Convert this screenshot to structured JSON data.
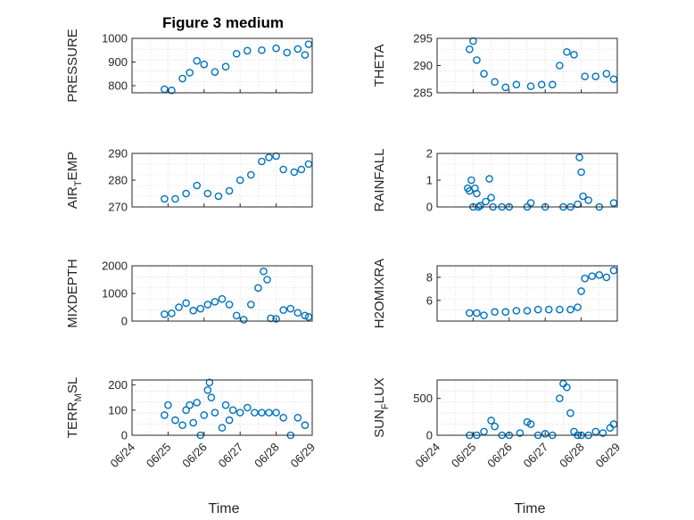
{
  "figure_title": "Figure 3 medium",
  "chart_data": [
    {
      "type": "scatter",
      "ylabel": "PRESSURE",
      "ylabel_sub": null,
      "xlim": [
        "06/24",
        "06/29"
      ],
      "ylim": [
        770,
        1000
      ],
      "yticks": [
        800,
        900,
        1000
      ],
      "title": "Figure 3 medium",
      "x_days": [
        0.9,
        1.1,
        1.4,
        1.6,
        1.8,
        2.0,
        2.3,
        2.6,
        2.9,
        3.2,
        3.6,
        4.0,
        4.3,
        4.6,
        4.8,
        4.9
      ],
      "y": [
        785,
        780,
        830,
        855,
        905,
        890,
        858,
        880,
        935,
        948,
        950,
        958,
        940,
        955,
        930,
        975
      ]
    },
    {
      "type": "scatter",
      "ylabel": "THETA",
      "xlim": [
        "06/24",
        "06/29"
      ],
      "ylim": [
        285,
        295
      ],
      "yticks": [
        285,
        290,
        295
      ],
      "x_days": [
        0.9,
        1.0,
        1.1,
        1.3,
        1.6,
        1.9,
        2.2,
        2.6,
        2.9,
        3.2,
        3.4,
        3.6,
        3.8,
        4.1,
        4.4,
        4.7,
        4.9
      ],
      "y": [
        293,
        294.5,
        291,
        288.5,
        287,
        286,
        286.5,
        286.2,
        286.5,
        286.5,
        290,
        292.5,
        292,
        288,
        288,
        288.5,
        287.5
      ]
    },
    {
      "type": "scatter",
      "ylabel": "AIR",
      "ylabel_sub": "T",
      "ylabel_after": "EMP",
      "xlim": [
        "06/24",
        "06/29"
      ],
      "ylim": [
        270,
        290
      ],
      "yticks": [
        270,
        280,
        290
      ],
      "x_days": [
        0.9,
        1.2,
        1.5,
        1.8,
        2.1,
        2.4,
        2.7,
        3.0,
        3.3,
        3.6,
        3.8,
        4.0,
        4.2,
        4.5,
        4.7,
        4.9
      ],
      "y": [
        273,
        273,
        275,
        278,
        275,
        274,
        276,
        280,
        282,
        287,
        288.5,
        289,
        284,
        283,
        284,
        286
      ]
    },
    {
      "type": "scatter",
      "ylabel": "RAINFALL",
      "xlim": [
        "06/24",
        "06/29"
      ],
      "ylim": [
        0,
        2
      ],
      "yticks": [
        0,
        1,
        2
      ],
      "x_days": [
        0.85,
        0.9,
        0.95,
        1.0,
        1.05,
        1.1,
        1.15,
        1.2,
        1.35,
        1.45,
        1.5,
        1.55,
        1.8,
        2.0,
        2.5,
        2.6,
        3.0,
        3.5,
        3.7,
        3.9,
        3.95,
        4.0,
        4.05,
        4.2,
        4.5,
        4.9
      ],
      "y": [
        0.7,
        0.6,
        1.0,
        0.0,
        0.7,
        0.5,
        0.0,
        0.05,
        0.2,
        1.05,
        0.35,
        0.0,
        0.0,
        0.0,
        0.0,
        0.15,
        0.0,
        0.0,
        0.0,
        0.1,
        1.85,
        1.3,
        0.4,
        0.25,
        0.0,
        0.15
      ]
    },
    {
      "type": "scatter",
      "ylabel": "MIXDEPTH",
      "xlim": [
        "06/24",
        "06/29"
      ],
      "ylim": [
        0,
        2000
      ],
      "yticks": [
        0,
        1000,
        2000
      ],
      "x_days": [
        0.9,
        1.1,
        1.3,
        1.5,
        1.7,
        1.9,
        2.1,
        2.3,
        2.5,
        2.7,
        2.9,
        3.1,
        3.3,
        3.5,
        3.65,
        3.75,
        3.85,
        4.0,
        4.2,
        4.4,
        4.6,
        4.8,
        4.9
      ],
      "y": [
        250,
        280,
        500,
        650,
        380,
        450,
        600,
        700,
        800,
        600,
        200,
        50,
        600,
        1200,
        1800,
        1500,
        100,
        80,
        400,
        450,
        300,
        200,
        150
      ]
    },
    {
      "type": "scatter",
      "ylabel": "H2OMIXRA",
      "xlim": [
        "06/24",
        "06/29"
      ],
      "ylim": [
        4.2,
        9
      ],
      "yticks": [
        6,
        8
      ],
      "x_days": [
        0.9,
        1.1,
        1.3,
        1.6,
        1.9,
        2.2,
        2.5,
        2.8,
        3.1,
        3.4,
        3.7,
        3.9,
        4.0,
        4.1,
        4.3,
        4.5,
        4.7,
        4.9
      ],
      "y": [
        4.9,
        4.9,
        4.7,
        5.0,
        5.0,
        5.1,
        5.1,
        5.2,
        5.2,
        5.2,
        5.2,
        5.4,
        6.8,
        7.9,
        8.1,
        8.2,
        8.0,
        8.6
      ]
    },
    {
      "type": "scatter",
      "ylabel": "TERR",
      "ylabel_sub": "M",
      "ylabel_after": "SL",
      "xlim": [
        "06/24",
        "06/29"
      ],
      "ylim": [
        0,
        220
      ],
      "yticks": [
        0,
        100,
        200
      ],
      "x_days": [
        0.9,
        1.0,
        1.2,
        1.4,
        1.5,
        1.6,
        1.7,
        1.8,
        1.9,
        2.0,
        2.1,
        2.15,
        2.2,
        2.3,
        2.5,
        2.6,
        2.7,
        2.8,
        3.0,
        3.2,
        3.4,
        3.6,
        3.8,
        4.0,
        4.2,
        4.4,
        4.6,
        4.8
      ],
      "y": [
        80,
        120,
        60,
        40,
        100,
        120,
        50,
        130,
        0,
        80,
        180,
        210,
        150,
        90,
        30,
        120,
        60,
        100,
        90,
        110,
        90,
        90,
        90,
        90,
        70,
        0,
        70,
        40
      ]
    },
    {
      "type": "scatter",
      "ylabel": "SUN",
      "ylabel_sub": "F",
      "ylabel_after": "LUX",
      "xlim": [
        "06/24",
        "06/29"
      ],
      "ylim": [
        0,
        750
      ],
      "yticks": [
        0,
        500
      ],
      "x_days": [
        0.9,
        1.1,
        1.3,
        1.5,
        1.6,
        1.8,
        2.0,
        2.3,
        2.5,
        2.6,
        2.8,
        3.0,
        3.2,
        3.4,
        3.5,
        3.6,
        3.7,
        3.8,
        3.9,
        4.0,
        4.2,
        4.4,
        4.6,
        4.8,
        4.9
      ],
      "y": [
        0,
        0,
        50,
        200,
        120,
        0,
        0,
        30,
        180,
        150,
        0,
        20,
        0,
        500,
        700,
        650,
        300,
        50,
        0,
        0,
        0,
        50,
        30,
        100,
        150
      ]
    }
  ],
  "xticks": [
    "06/24",
    "06/25",
    "06/26",
    "06/27",
    "06/28",
    "06/29"
  ],
  "xlabel": "Time"
}
